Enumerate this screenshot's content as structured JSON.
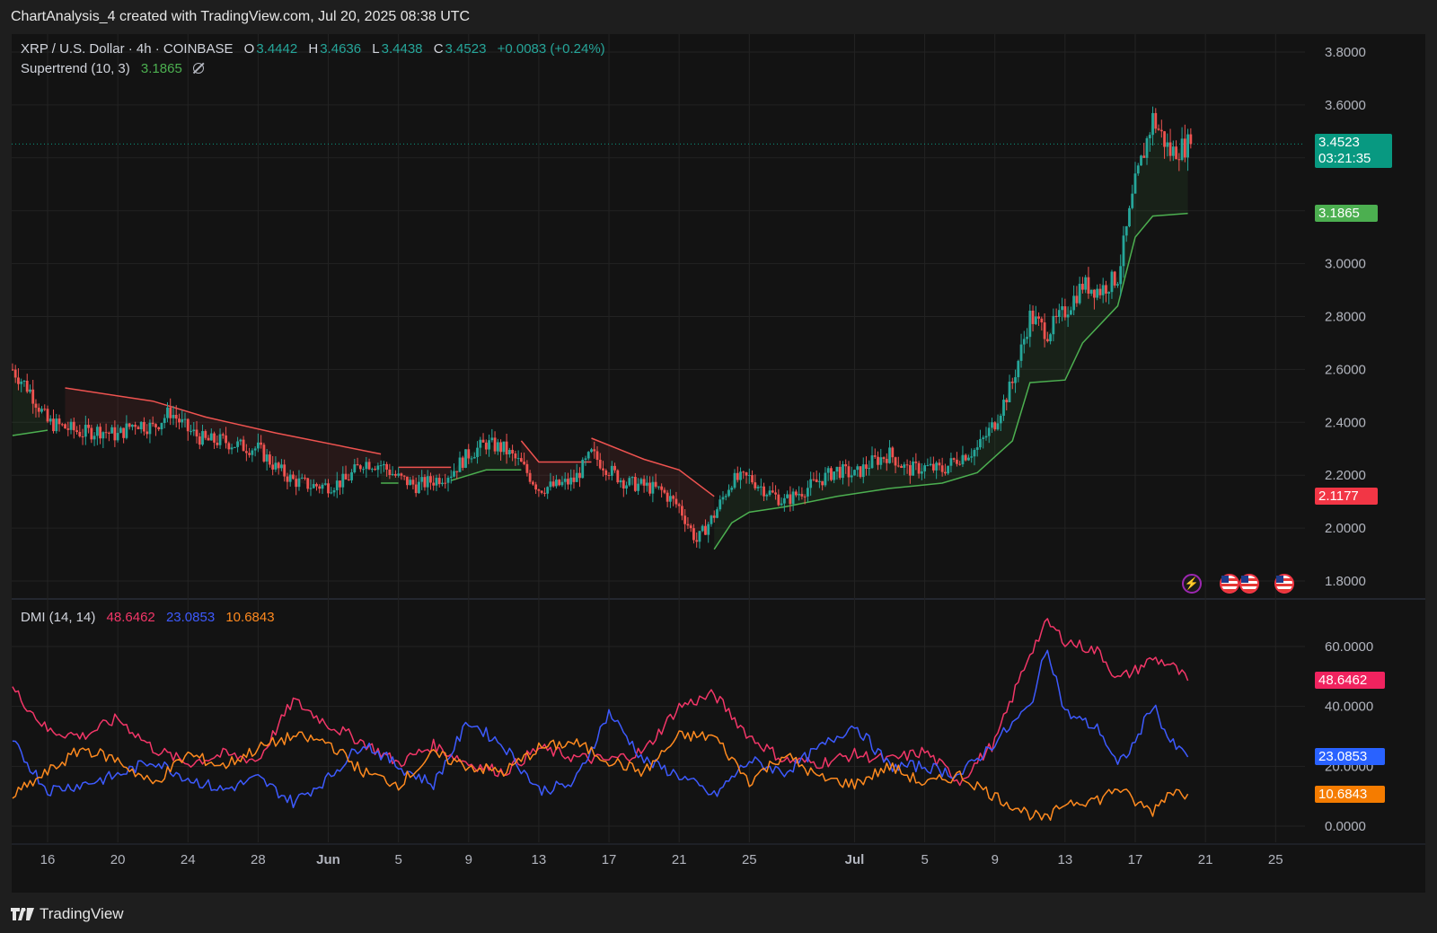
{
  "caption": "ChartAnalysis_4 created with TradingView.com, Jul 20, 2025 08:38 UTC",
  "brand": "TradingView",
  "symbol": {
    "name": "XRP / U.S. Dollar · 4h · COINBASE",
    "o_label": "O",
    "o": "3.4442",
    "h_label": "H",
    "h": "3.4636",
    "l_label": "L",
    "l": "3.4438",
    "c_label": "C",
    "c": "3.4523",
    "change": "+0.0083 (+0.24%)"
  },
  "supertrend": {
    "label": "Supertrend (10, 3)",
    "value": "3.1865"
  },
  "dmi": {
    "label": "DMI (14, 14)",
    "plus": "48.6462",
    "minus": "23.0853",
    "adx": "10.6843"
  },
  "badges": {
    "last_price": "3.4523",
    "countdown": "03:21:35",
    "supertrend": "3.1865",
    "level_red": "2.1177",
    "dmi_plus": "48.6462",
    "dmi_minus": "23.0853",
    "adx": "10.6843"
  },
  "icons": [
    "lightning-event-icon",
    "us-flag-event-icon",
    "us-flag-event-icon",
    "us-flag-event-icon"
  ],
  "colors": {
    "up": "#26a69a",
    "down": "#ef5350",
    "supertrend_up": "#4caf50",
    "supertrend_down": "#ef5350",
    "di_plus": "#f23668",
    "di_minus": "#3d5afe",
    "adx": "#ff8a1f",
    "background": "#131313"
  },
  "chart_data": [
    {
      "type": "candlestick",
      "title": "XRP / U.S. Dollar · 4h · COINBASE",
      "y_ticks": [
        "3.8000",
        "3.6000",
        "3.4000",
        "3.2000",
        "3.0000",
        "2.8000",
        "2.6000",
        "2.4000",
        "2.2000",
        "2.0000",
        "1.8000"
      ],
      "x_ticks": [
        "16",
        "20",
        "24",
        "28",
        "Jun",
        "5",
        "9",
        "13",
        "17",
        "21",
        "25",
        "Jul",
        "5",
        "9",
        "13",
        "17",
        "21",
        "25"
      ],
      "x_tick_dates": [
        "2025-05-16",
        "2025-05-20",
        "2025-05-24",
        "2025-05-28",
        "2025-06-01",
        "2025-06-05",
        "2025-06-09",
        "2025-06-13",
        "2025-06-17",
        "2025-06-21",
        "2025-06-25",
        "2025-07-01",
        "2025-07-05",
        "2025-07-09",
        "2025-07-13",
        "2025-07-17",
        "2025-07-21",
        "2025-07-25"
      ],
      "ylim": [
        1.75,
        3.85
      ],
      "price_path": [
        [
          "2025-05-14",
          2.6
        ],
        [
          "2025-05-15",
          2.52
        ],
        [
          "2025-05-16",
          2.4
        ],
        [
          "2025-05-17",
          2.38
        ],
        [
          "2025-05-18",
          2.36
        ],
        [
          "2025-05-19",
          2.37
        ],
        [
          "2025-05-20",
          2.35
        ],
        [
          "2025-05-21",
          2.4
        ],
        [
          "2025-05-22",
          2.38
        ],
        [
          "2025-05-23",
          2.44
        ],
        [
          "2025-05-24",
          2.37
        ],
        [
          "2025-05-25",
          2.33
        ],
        [
          "2025-05-26",
          2.33
        ],
        [
          "2025-05-27",
          2.31
        ],
        [
          "2025-05-28",
          2.3
        ],
        [
          "2025-05-29",
          2.23
        ],
        [
          "2025-05-30",
          2.18
        ],
        [
          "2025-05-31",
          2.16
        ],
        [
          "2025-06-01",
          2.16
        ],
        [
          "2025-06-02",
          2.18
        ],
        [
          "2025-06-03",
          2.25
        ],
        [
          "2025-06-04",
          2.24
        ],
        [
          "2025-06-05",
          2.19
        ],
        [
          "2025-06-06",
          2.16
        ],
        [
          "2025-06-07",
          2.18
        ],
        [
          "2025-06-08",
          2.21
        ],
        [
          "2025-06-09",
          2.28
        ],
        [
          "2025-06-10",
          2.32
        ],
        [
          "2025-06-11",
          2.3
        ],
        [
          "2025-06-12",
          2.24
        ],
        [
          "2025-06-13",
          2.15
        ],
        [
          "2025-06-14",
          2.16
        ],
        [
          "2025-06-15",
          2.18
        ],
        [
          "2025-06-16",
          2.28
        ],
        [
          "2025-06-17",
          2.22
        ],
        [
          "2025-06-18",
          2.17
        ],
        [
          "2025-06-19",
          2.16
        ],
        [
          "2025-06-20",
          2.14
        ],
        [
          "2025-06-21",
          2.08
        ],
        [
          "2025-06-22",
          1.95
        ],
        [
          "2025-06-23",
          2.05
        ],
        [
          "2025-06-24",
          2.18
        ],
        [
          "2025-06-25",
          2.19
        ],
        [
          "2025-06-26",
          2.14
        ],
        [
          "2025-06-27",
          2.1
        ],
        [
          "2025-06-28",
          2.14
        ],
        [
          "2025-06-29",
          2.18
        ],
        [
          "2025-06-30",
          2.22
        ],
        [
          "2025-07-01",
          2.2
        ],
        [
          "2025-07-02",
          2.25
        ],
        [
          "2025-07-03",
          2.28
        ],
        [
          "2025-07-04",
          2.22
        ],
        [
          "2025-07-05",
          2.23
        ],
        [
          "2025-07-06",
          2.22
        ],
        [
          "2025-07-07",
          2.27
        ],
        [
          "2025-07-08",
          2.3
        ],
        [
          "2025-07-09",
          2.4
        ],
        [
          "2025-07-10",
          2.55
        ],
        [
          "2025-07-11",
          2.8
        ],
        [
          "2025-07-12",
          2.74
        ],
        [
          "2025-07-13",
          2.82
        ],
        [
          "2025-07-14",
          2.92
        ],
        [
          "2025-07-15",
          2.9
        ],
        [
          "2025-07-16",
          2.95
        ],
        [
          "2025-07-17",
          3.3
        ],
        [
          "2025-07-18",
          3.55
        ],
        [
          "2025-07-19",
          3.42
        ],
        [
          "2025-07-20",
          3.45
        ]
      ],
      "supertrend_segments": [
        {
          "trend": "up",
          "points": [
            [
              "2025-05-14",
              2.35
            ],
            [
              "2025-05-16",
              2.37
            ]
          ]
        },
        {
          "trend": "down",
          "points": [
            [
              "2025-05-17",
              2.53
            ],
            [
              "2025-05-22",
              2.48
            ],
            [
              "2025-05-25",
              2.42
            ],
            [
              "2025-05-29",
              2.36
            ],
            [
              "2025-06-04",
              2.28
            ]
          ]
        },
        {
          "trend": "up",
          "points": [
            [
              "2025-06-04",
              2.17
            ],
            [
              "2025-06-05",
              2.17
            ]
          ]
        },
        {
          "trend": "down",
          "points": [
            [
              "2025-06-05",
              2.23
            ],
            [
              "2025-06-08",
              2.23
            ]
          ]
        },
        {
          "trend": "up",
          "points": [
            [
              "2025-06-08",
              2.18
            ],
            [
              "2025-06-10",
              2.22
            ],
            [
              "2025-06-12",
              2.22
            ]
          ]
        },
        {
          "trend": "down",
          "points": [
            [
              "2025-06-12",
              2.33
            ],
            [
              "2025-06-13",
              2.25
            ],
            [
              "2025-06-16",
              2.25
            ]
          ]
        },
        {
          "trend": "up",
          "points": [
            [
              "2025-06-16",
              2.23
            ]
          ]
        },
        {
          "trend": "down",
          "points": [
            [
              "2025-06-16",
              2.34
            ],
            [
              "2025-06-19",
              2.26
            ],
            [
              "2025-06-21",
              2.22
            ],
            [
              "2025-06-23",
              2.12
            ]
          ]
        },
        {
          "trend": "up",
          "points": [
            [
              "2025-06-23",
              1.92
            ],
            [
              "2025-06-24",
              2.02
            ],
            [
              "2025-06-25",
              2.06
            ],
            [
              "2025-06-27",
              2.08
            ],
            [
              "2025-06-30",
              2.12
            ],
            [
              "2025-07-03",
              2.15
            ],
            [
              "2025-07-06",
              2.17
            ],
            [
              "2025-07-08",
              2.21
            ],
            [
              "2025-07-10",
              2.33
            ],
            [
              "2025-07-11",
              2.55
            ],
            [
              "2025-07-13",
              2.56
            ],
            [
              "2025-07-14",
              2.7
            ],
            [
              "2025-07-16",
              2.84
            ],
            [
              "2025-07-17",
              3.1
            ],
            [
              "2025-07-18",
              3.18
            ],
            [
              "2025-07-20",
              3.19
            ]
          ]
        }
      ]
    },
    {
      "type": "line",
      "title": "DMI (14, 14)",
      "y_ticks": [
        "60.0000",
        "40.0000",
        "20.0000",
        "0.0000"
      ],
      "ylim": [
        -2,
        74
      ],
      "series": [
        {
          "name": "+DI",
          "color": "#f23668",
          "points": [
            [
              "2025-05-14",
              46
            ],
            [
              "2025-05-16",
              32
            ],
            [
              "2025-05-18",
              30
            ],
            [
              "2025-05-20",
              36
            ],
            [
              "2025-05-22",
              26
            ],
            [
              "2025-05-24",
              21
            ],
            [
              "2025-05-26",
              24
            ],
            [
              "2025-05-28",
              22
            ],
            [
              "2025-05-30",
              42
            ],
            [
              "2025-06-01",
              34
            ],
            [
              "2025-06-03",
              28
            ],
            [
              "2025-06-05",
              21
            ],
            [
              "2025-06-07",
              27
            ],
            [
              "2025-06-09",
              21
            ],
            [
              "2025-06-11",
              18
            ],
            [
              "2025-06-13",
              26
            ],
            [
              "2025-06-15",
              23
            ],
            [
              "2025-06-17",
              22
            ],
            [
              "2025-06-19",
              25
            ],
            [
              "2025-06-21",
              40
            ],
            [
              "2025-06-23",
              44
            ],
            [
              "2025-06-25",
              30
            ],
            [
              "2025-06-27",
              22
            ],
            [
              "2025-06-29",
              21
            ],
            [
              "2025-07-01",
              24
            ],
            [
              "2025-07-03",
              22
            ],
            [
              "2025-07-05",
              25
            ],
            [
              "2025-07-07",
              15
            ],
            [
              "2025-07-09",
              28
            ],
            [
              "2025-07-11",
              58
            ],
            [
              "2025-07-12",
              68
            ],
            [
              "2025-07-13",
              62
            ],
            [
              "2025-07-15",
              58
            ],
            [
              "2025-07-16",
              49
            ],
            [
              "2025-07-17",
              52
            ],
            [
              "2025-07-18",
              56
            ],
            [
              "2025-07-19",
              54
            ],
            [
              "2025-07-20",
              48.6
            ]
          ]
        },
        {
          "name": "-DI",
          "color": "#3d5afe",
          "points": [
            [
              "2025-05-14",
              28
            ],
            [
              "2025-05-16",
              12
            ],
            [
              "2025-05-18",
              14
            ],
            [
              "2025-05-20",
              17
            ],
            [
              "2025-05-22",
              22
            ],
            [
              "2025-05-24",
              16
            ],
            [
              "2025-05-26",
              12
            ],
            [
              "2025-05-28",
              16
            ],
            [
              "2025-05-30",
              8
            ],
            [
              "2025-06-01",
              16
            ],
            [
              "2025-06-03",
              28
            ],
            [
              "2025-06-05",
              20
            ],
            [
              "2025-06-07",
              14
            ],
            [
              "2025-06-09",
              35
            ],
            [
              "2025-06-11",
              27
            ],
            [
              "2025-06-13",
              12
            ],
            [
              "2025-06-15",
              14
            ],
            [
              "2025-06-17",
              38
            ],
            [
              "2025-06-19",
              22
            ],
            [
              "2025-06-21",
              17
            ],
            [
              "2025-06-23",
              10
            ],
            [
              "2025-06-25",
              22
            ],
            [
              "2025-06-27",
              18
            ],
            [
              "2025-06-29",
              26
            ],
            [
              "2025-07-01",
              34
            ],
            [
              "2025-07-03",
              20
            ],
            [
              "2025-07-05",
              20
            ],
            [
              "2025-07-07",
              17
            ],
            [
              "2025-07-09",
              28
            ],
            [
              "2025-07-11",
              40
            ],
            [
              "2025-07-12",
              60
            ],
            [
              "2025-07-13",
              38
            ],
            [
              "2025-07-15",
              32
            ],
            [
              "2025-07-16",
              20
            ],
            [
              "2025-07-17",
              28
            ],
            [
              "2025-07-18",
              41
            ],
            [
              "2025-07-19",
              28
            ],
            [
              "2025-07-20",
              23.1
            ]
          ]
        },
        {
          "name": "ADX",
          "color": "#ff8a1f",
          "points": [
            [
              "2025-05-14",
              10
            ],
            [
              "2025-05-16",
              18
            ],
            [
              "2025-05-18",
              26
            ],
            [
              "2025-05-20",
              22
            ],
            [
              "2025-05-22",
              14
            ],
            [
              "2025-05-24",
              24
            ],
            [
              "2025-05-26",
              20
            ],
            [
              "2025-05-28",
              26
            ],
            [
              "2025-05-30",
              30
            ],
            [
              "2025-06-01",
              28
            ],
            [
              "2025-06-03",
              18
            ],
            [
              "2025-06-05",
              14
            ],
            [
              "2025-06-07",
              24
            ],
            [
              "2025-06-09",
              20
            ],
            [
              "2025-06-11",
              18
            ],
            [
              "2025-06-13",
              26
            ],
            [
              "2025-06-15",
              28
            ],
            [
              "2025-06-17",
              22
            ],
            [
              "2025-06-19",
              18
            ],
            [
              "2025-06-21",
              30
            ],
            [
              "2025-06-23",
              30
            ],
            [
              "2025-06-25",
              15
            ],
            [
              "2025-06-27",
              24
            ],
            [
              "2025-06-29",
              16
            ],
            [
              "2025-07-01",
              14
            ],
            [
              "2025-07-03",
              20
            ],
            [
              "2025-07-05",
              14
            ],
            [
              "2025-07-07",
              17
            ],
            [
              "2025-07-09",
              10
            ],
            [
              "2025-07-11",
              4
            ],
            [
              "2025-07-12",
              2
            ],
            [
              "2025-07-13",
              8
            ],
            [
              "2025-07-15",
              9
            ],
            [
              "2025-07-16",
              13
            ],
            [
              "2025-07-17",
              8
            ],
            [
              "2025-07-18",
              5
            ],
            [
              "2025-07-19",
              12
            ],
            [
              "2025-07-20",
              10.7
            ]
          ]
        }
      ]
    }
  ]
}
